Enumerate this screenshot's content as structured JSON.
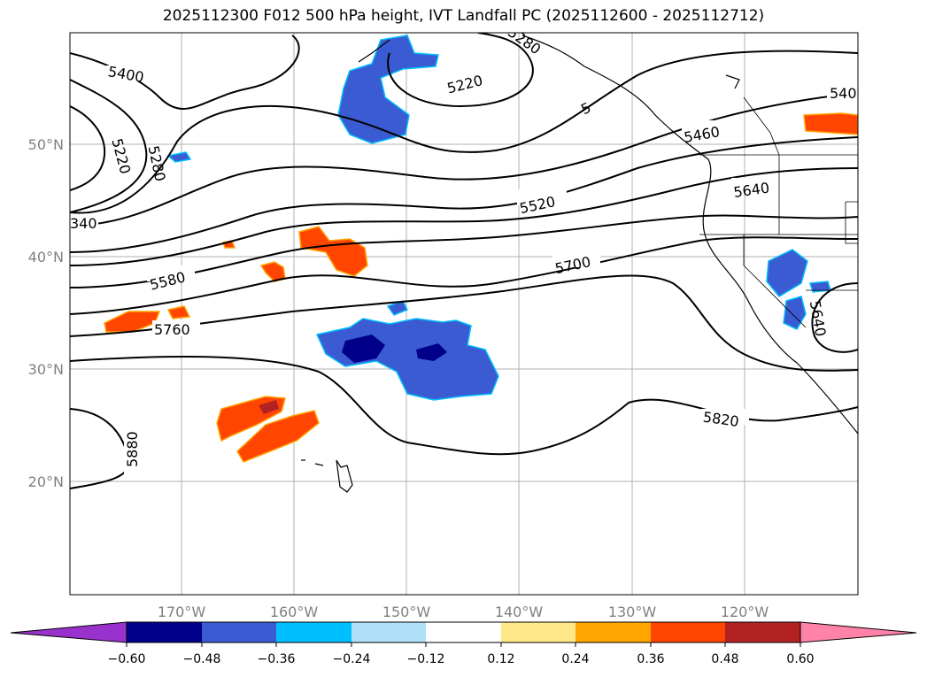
{
  "title": "2025112300 F012 500 hPa height, IVT Landfall PC (2025112600 - 2025112712)",
  "lat_labels": [
    "50°N",
    "40°N",
    "30°N",
    "20°N"
  ],
  "lon_labels": [
    "170°W",
    "160°W",
    "150°W",
    "140°W",
    "130°W",
    "120°W"
  ],
  "contour_labels": [
    "5400",
    "5220",
    "5280",
    "5220",
    "5280",
    "540",
    "5460",
    "5640",
    "5520",
    "5700",
    "5580",
    "5760",
    "5640",
    "5820",
    "5880",
    "340",
    "5"
  ],
  "colorbar": {
    "ticks": [
      "−0.60",
      "−0.48",
      "−0.36",
      "−0.24",
      "−0.12",
      "0.12",
      "0.24",
      "0.36",
      "0.48",
      "0.60"
    ],
    "colors": [
      "#9932cc",
      "#00008b",
      "#3a5bd1",
      "#00bfff",
      "#b0e0f8",
      "#ffffff",
      "#ffe88a",
      "#ffa500",
      "#ff4500",
      "#b22222",
      "#ff82a9"
    ]
  }
}
